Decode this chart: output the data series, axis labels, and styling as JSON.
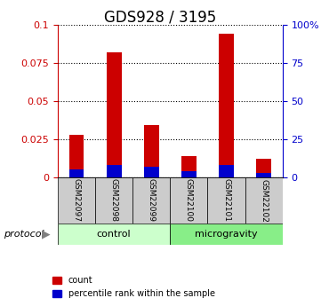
{
  "title": "GDS928 / 3195",
  "samples": [
    "GSM22097",
    "GSM22098",
    "GSM22099",
    "GSM22100",
    "GSM22101",
    "GSM22102"
  ],
  "red_values": [
    0.028,
    0.082,
    0.034,
    0.014,
    0.094,
    0.012
  ],
  "blue_values": [
    0.005,
    0.008,
    0.007,
    0.004,
    0.008,
    0.003
  ],
  "groups": [
    {
      "label": "control",
      "start": 0,
      "end": 3,
      "color": "#ccffcc"
    },
    {
      "label": "microgravity",
      "start": 3,
      "end": 6,
      "color": "#88ee88"
    }
  ],
  "protocol_label": "protocol",
  "ylim_left": [
    0,
    0.1
  ],
  "ylim_right": [
    0,
    100
  ],
  "yticks_left": [
    0,
    0.025,
    0.05,
    0.075,
    0.1
  ],
  "yticks_right": [
    0,
    25,
    50,
    75,
    100
  ],
  "ytick_labels_left": [
    "0",
    "0.025",
    "0.05",
    "0.075",
    "0.1"
  ],
  "ytick_labels_right": [
    "0",
    "25",
    "50",
    "75",
    "100%"
  ],
  "red_color": "#cc0000",
  "blue_color": "#0000cc",
  "grid_color": "#000000",
  "bar_width": 0.4,
  "sample_box_color": "#cccccc",
  "legend_count_label": "count",
  "legend_pct_label": "percentile rank within the sample",
  "title_fontsize": 12,
  "tick_fontsize": 8,
  "label_fontsize": 9
}
